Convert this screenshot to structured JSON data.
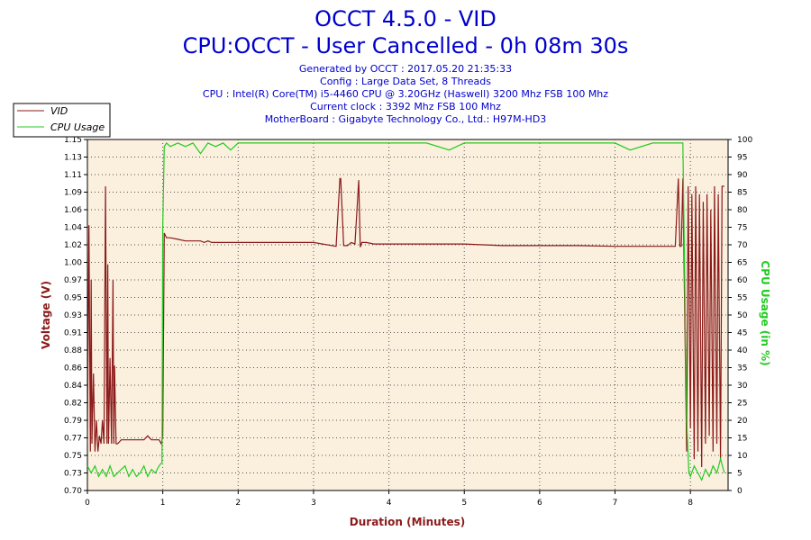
{
  "header": {
    "title_line1": "OCCT 4.5.0 - VID",
    "title_line2": "CPU:OCCT - User Cancelled - 0h 08m 30s",
    "info": [
      "Generated by OCCT : 2017.05.20 21:35:33",
      "Config : Large Data Set, 8 Threads",
      "CPU : Intel(R) Core(TM) i5-4460 CPU @ 3.20GHz (Haswell) 3200 Mhz FSB 100 Mhz",
      "Current clock : 3392 Mhz FSB 100 Mhz",
      "MotherBoard : Gigabyte Technology Co., Ltd.: H97M-HD3"
    ]
  },
  "colors": {
    "vid": "#8b1a1a",
    "cpu": "#22cc22",
    "plot_bg": "#fbefde",
    "title": "#0000cc"
  },
  "chart_data": {
    "type": "line",
    "xlabel": "Duration (Minutes)",
    "ylabel_left": "Voltage (V)",
    "ylabel_right": "CPU Usage (in %)",
    "xlim": [
      0,
      8.5
    ],
    "ylim_left": [
      0.7,
      1.15
    ],
    "ylim_right": [
      0,
      100
    ],
    "x_ticks": [
      0,
      1,
      2,
      3,
      4,
      5,
      6,
      7,
      8
    ],
    "y_ticks_left": [
      "0.70",
      "0.73",
      "0.75",
      "0.77",
      "0.79",
      "0.82",
      "0.84",
      "0.86",
      "0.88",
      "0.91",
      "0.93",
      "0.95",
      "0.97",
      "1.00",
      "1.02",
      "1.04",
      "1.06",
      "1.09",
      "1.11",
      "1.13",
      "1.15"
    ],
    "y_ticks_right": [
      0,
      5,
      10,
      15,
      20,
      25,
      30,
      35,
      40,
      45,
      50,
      55,
      60,
      65,
      70,
      75,
      80,
      85,
      90,
      95,
      100
    ],
    "grid": true,
    "legend": [
      "VID",
      "CPU Usage"
    ],
    "legend_position": "top-left",
    "series": [
      {
        "name": "VID",
        "axis": "left",
        "x": [
          0,
          0.02,
          0.04,
          0.05,
          0.06,
          0.08,
          0.1,
          0.12,
          0.14,
          0.16,
          0.18,
          0.2,
          0.22,
          0.24,
          0.26,
          0.27,
          0.28,
          0.3,
          0.32,
          0.34,
          0.35,
          0.36,
          0.38,
          0.4,
          0.45,
          0.5,
          0.55,
          0.6,
          0.65,
          0.7,
          0.75,
          0.8,
          0.85,
          0.9,
          0.95,
          0.98,
          1.0,
          1.02,
          1.05,
          1.1,
          1.2,
          1.3,
          1.4,
          1.5,
          1.55,
          1.6,
          1.65,
          1.7,
          2.0,
          2.5,
          3.0,
          3.3,
          3.35,
          3.36,
          3.4,
          3.45,
          3.5,
          3.55,
          3.6,
          3.62,
          3.64,
          3.7,
          3.8,
          4.0,
          4.5,
          5.0,
          5.5,
          6.0,
          6.5,
          7.0,
          7.5,
          7.8,
          7.84,
          7.86,
          7.88,
          7.9,
          7.95,
          7.97,
          8.0,
          8.02,
          8.05,
          8.07,
          8.1,
          8.12,
          8.15,
          8.17,
          8.2,
          8.22,
          8.25,
          8.27,
          8.3,
          8.32,
          8.35,
          8.37,
          8.4,
          8.42,
          8.45
        ],
        "y": [
          0.76,
          1.04,
          0.75,
          0.97,
          0.76,
          0.85,
          0.75,
          0.79,
          0.75,
          0.77,
          0.76,
          0.79,
          0.76,
          1.09,
          0.76,
          0.99,
          0.76,
          0.87,
          0.76,
          0.97,
          0.76,
          0.86,
          0.76,
          0.76,
          0.765,
          0.765,
          0.765,
          0.765,
          0.765,
          0.765,
          0.765,
          0.77,
          0.765,
          0.765,
          0.765,
          0.76,
          0.77,
          1.03,
          1.024,
          1.024,
          1.022,
          1.02,
          1.02,
          1.02,
          1.018,
          1.02,
          1.018,
          1.018,
          1.018,
          1.018,
          1.018,
          1.013,
          1.1,
          1.1,
          1.014,
          1.014,
          1.018,
          1.016,
          1.098,
          1.012,
          1.018,
          1.018,
          1.016,
          1.016,
          1.016,
          1.016,
          1.014,
          1.014,
          1.014,
          1.013,
          1.013,
          1.013,
          1.1,
          1.013,
          1.013,
          1.1,
          0.75,
          1.09,
          0.78,
          1.08,
          0.74,
          1.09,
          0.75,
          1.08,
          0.73,
          1.07,
          0.76,
          1.08,
          0.77,
          1.06,
          0.75,
          1.09,
          0.76,
          1.08,
          0.74,
          1.09,
          1.09
        ]
      },
      {
        "name": "CPU Usage",
        "axis": "right",
        "x": [
          0,
          0.05,
          0.1,
          0.15,
          0.2,
          0.25,
          0.3,
          0.35,
          0.4,
          0.45,
          0.5,
          0.55,
          0.6,
          0.65,
          0.7,
          0.75,
          0.8,
          0.85,
          0.9,
          0.95,
          0.99,
          1.0,
          1.02,
          1.05,
          1.1,
          1.2,
          1.3,
          1.4,
          1.5,
          1.6,
          1.7,
          1.8,
          1.9,
          2.0,
          2.5,
          3.0,
          3.5,
          4.0,
          4.5,
          4.8,
          5.0,
          5.5,
          6.0,
          6.5,
          7.0,
          7.2,
          7.5,
          7.8,
          7.9,
          7.95,
          7.98,
          8.0,
          8.05,
          8.1,
          8.15,
          8.2,
          8.25,
          8.3,
          8.35,
          8.4,
          8.45
        ],
        "y": [
          7,
          5,
          7,
          4,
          6,
          4,
          7,
          4,
          5,
          6,
          7,
          4,
          6,
          4,
          5,
          7,
          4,
          6,
          5,
          7,
          8,
          75,
          98,
          99,
          98,
          99,
          98,
          99,
          96,
          99,
          98,
          99,
          97,
          99,
          99,
          99,
          99,
          99,
          99,
          97,
          99,
          99,
          99,
          99,
          99,
          97,
          99,
          99,
          99,
          20,
          5,
          4,
          7,
          5,
          3,
          6,
          4,
          7,
          5,
          9,
          5
        ]
      }
    ]
  }
}
